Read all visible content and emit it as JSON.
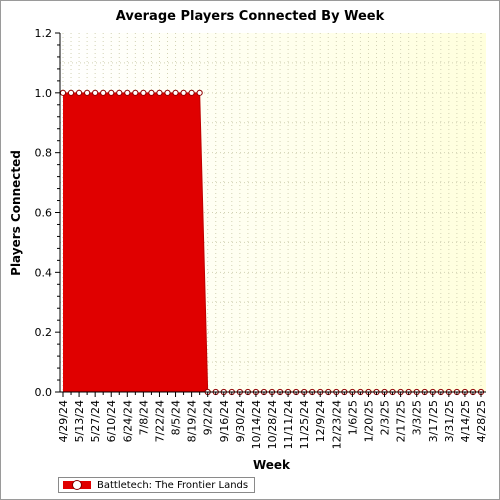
{
  "chart_data": {
    "type": "area",
    "title": "Average Players Connected By Week",
    "xlabel": "Week",
    "ylabel": "Players Connected",
    "ylim": [
      0,
      1.2
    ],
    "yticks": [
      "0.0",
      "0.2",
      "0.4",
      "0.6",
      "0.8",
      "1.0",
      "1.2"
    ],
    "x_tick_labels": [
      "4/29/24",
      "5/13/24",
      "5/27/24",
      "6/10/24",
      "6/24/24",
      "7/8/24",
      "7/22/24",
      "8/5/24",
      "8/19/24",
      "9/2/24",
      "9/16/24",
      "9/30/24",
      "10/14/24",
      "10/28/24",
      "11/11/24",
      "11/25/24",
      "12/9/24",
      "12/23/24",
      "1/6/25",
      "1/20/25",
      "2/3/25",
      "2/17/25",
      "3/3/25",
      "3/17/25",
      "3/31/25",
      "4/14/25",
      "4/28/25"
    ],
    "x": [
      "4/29/24",
      "5/6/24",
      "5/13/24",
      "5/20/24",
      "5/27/24",
      "6/3/24",
      "6/10/24",
      "6/17/24",
      "6/24/24",
      "7/1/24",
      "7/8/24",
      "7/15/24",
      "7/22/24",
      "7/29/24",
      "8/5/24",
      "8/12/24",
      "8/19/24",
      "8/26/24",
      "9/2/24",
      "9/9/24",
      "9/16/24",
      "9/23/24",
      "9/30/24",
      "10/7/24",
      "10/14/24",
      "10/21/24",
      "10/28/24",
      "11/4/24",
      "11/11/24",
      "11/18/24",
      "11/25/24",
      "12/2/24",
      "12/9/24",
      "12/16/24",
      "12/23/24",
      "12/30/24",
      "1/6/25",
      "1/13/25",
      "1/20/25",
      "1/27/25",
      "2/3/25",
      "2/10/25",
      "2/17/25",
      "2/24/25",
      "3/3/25",
      "3/10/25",
      "3/17/25",
      "3/24/25",
      "3/31/25",
      "4/7/25",
      "4/14/25",
      "4/21/25",
      "4/28/25"
    ],
    "series": [
      {
        "name": "Battletech: The Frontier Lands",
        "color": "#e00000",
        "values": [
          1,
          1,
          1,
          1,
          1,
          1,
          1,
          1,
          1,
          1,
          1,
          1,
          1,
          1,
          1,
          1,
          1,
          1,
          0,
          0,
          0,
          0,
          0,
          0,
          0,
          0,
          0,
          0,
          0,
          0,
          0,
          0,
          0,
          0,
          0,
          0,
          0,
          0,
          0,
          0,
          0,
          0,
          0,
          0,
          0,
          0,
          0,
          0,
          0,
          0,
          0,
          0,
          0
        ]
      }
    ],
    "grid": true,
    "legend": "bottom-left"
  }
}
